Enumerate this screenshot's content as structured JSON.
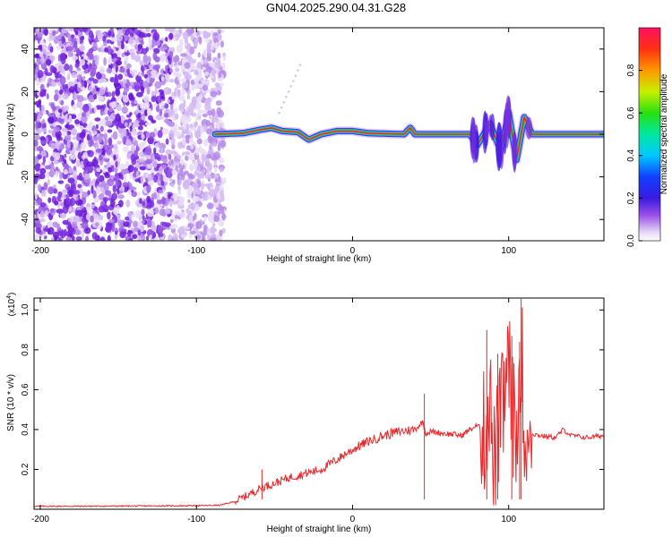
{
  "title": "GN04.2025.290.04.31.G28",
  "chart_data": [
    {
      "type": "heatmap",
      "panel": "spectrogram",
      "xlabel": "Height of straight line (km)",
      "ylabel": "Frequency (Hz)",
      "xlim": [
        -204,
        161
      ],
      "ylim": [
        -50,
        50
      ],
      "xticks": [
        -200,
        -100,
        0,
        100
      ],
      "xtick_labels": [
        "-200",
        "-100",
        "0",
        "100"
      ],
      "yticks": [
        -40,
        -20,
        0,
        20,
        40
      ],
      "ytick_labels": [
        "-40",
        "-20",
        "0",
        "20",
        "40"
      ],
      "colorbar": {
        "label": "Normalized spectral amplitude",
        "range": [
          0,
          1
        ],
        "ticks": [
          0.0,
          0.2,
          0.4,
          0.6,
          0.8
        ],
        "tick_labels": [
          "0.0",
          "0.2",
          "0.4",
          "0.6",
          "0.8"
        ]
      },
      "description_points": {
        "noise_region_km": [
          -204,
          -82
        ],
        "signal_start_km": -88,
        "signal_line_freq_hz": 0,
        "features": [
          {
            "x": -88,
            "y": 0
          },
          {
            "x": -70,
            "y": 0.5
          },
          {
            "x": -60,
            "y": 2
          },
          {
            "x": -52,
            "y": 3
          },
          {
            "x": -45,
            "y": 1.5
          },
          {
            "x": -35,
            "y": 1
          },
          {
            "x": -28,
            "y": -2.5
          },
          {
            "x": -20,
            "y": 0
          },
          {
            "x": -10,
            "y": 1.5
          },
          {
            "x": 0,
            "y": 1.5
          },
          {
            "x": 10,
            "y": 0.5
          },
          {
            "x": 33,
            "y": 0
          },
          {
            "x": 37,
            "y": 3
          },
          {
            "x": 40,
            "y": 0
          },
          {
            "x": 75,
            "y": 0
          },
          {
            "x": 80,
            "y": -5
          },
          {
            "x": 88,
            "y": 5
          },
          {
            "x": 95,
            "y": -8
          },
          {
            "x": 100,
            "y": 10
          },
          {
            "x": 105,
            "y": -12
          },
          {
            "x": 110,
            "y": 8
          },
          {
            "x": 115,
            "y": 0
          },
          {
            "x": 161,
            "y": 0
          }
        ]
      }
    },
    {
      "type": "line",
      "panel": "snr",
      "xlabel": "Height of straight line (km)",
      "ylabel": "SNR (10 * v/v)",
      "y_multiplier_label": "(x10",
      "y_multiplier_exp": "4",
      "y_multiplier_close": ")",
      "xlim": [
        -204,
        161
      ],
      "ylim": [
        0,
        1.06
      ],
      "xticks": [
        -200,
        -100,
        0,
        100
      ],
      "xtick_labels": [
        "-200",
        "-100",
        "0",
        "100"
      ],
      "yticks": [
        0.2,
        0.4,
        0.6,
        0.8,
        1.0
      ],
      "ytick_labels": [
        "0.2",
        "0.4",
        "0.6",
        "0.8",
        "1.0"
      ],
      "color": "#e8282a",
      "series": [
        {
          "name": "SNR",
          "x": [
            -204,
            -180,
            -150,
            -120,
            -100,
            -85,
            -75,
            -65,
            -58,
            -50,
            -40,
            -30,
            -20,
            -10,
            0,
            10,
            20,
            30,
            40,
            45,
            47,
            50,
            60,
            70,
            75,
            80,
            85,
            88,
            90,
            95,
            100,
            105,
            108,
            110,
            113,
            115,
            120,
            130,
            135,
            140,
            150,
            161
          ],
          "values": [
            0.015,
            0.015,
            0.016,
            0.017,
            0.018,
            0.02,
            0.04,
            0.08,
            0.11,
            0.13,
            0.16,
            0.18,
            0.2,
            0.25,
            0.3,
            0.34,
            0.37,
            0.39,
            0.4,
            0.44,
            0.38,
            0.39,
            0.38,
            0.37,
            0.4,
            0.42,
            0.38,
            0.6,
            0.2,
            0.45,
            0.7,
            0.3,
            0.9,
            0.4,
            0.35,
            0.38,
            0.37,
            0.36,
            0.4,
            0.37,
            0.36,
            0.37
          ]
        }
      ],
      "spikes": [
        {
          "x": -58,
          "y": 0.2
        },
        {
          "x": 46,
          "y": 0.58
        },
        {
          "x": 86,
          "y": 0.9
        },
        {
          "x": 93,
          "y": 0.78
        },
        {
          "x": 102,
          "y": 0.87
        },
        {
          "x": 107,
          "y": 0.84
        },
        {
          "x": 108,
          "y": 1.06
        }
      ]
    }
  ],
  "colors": {
    "line": "#e8282a",
    "frame": "#000000"
  }
}
